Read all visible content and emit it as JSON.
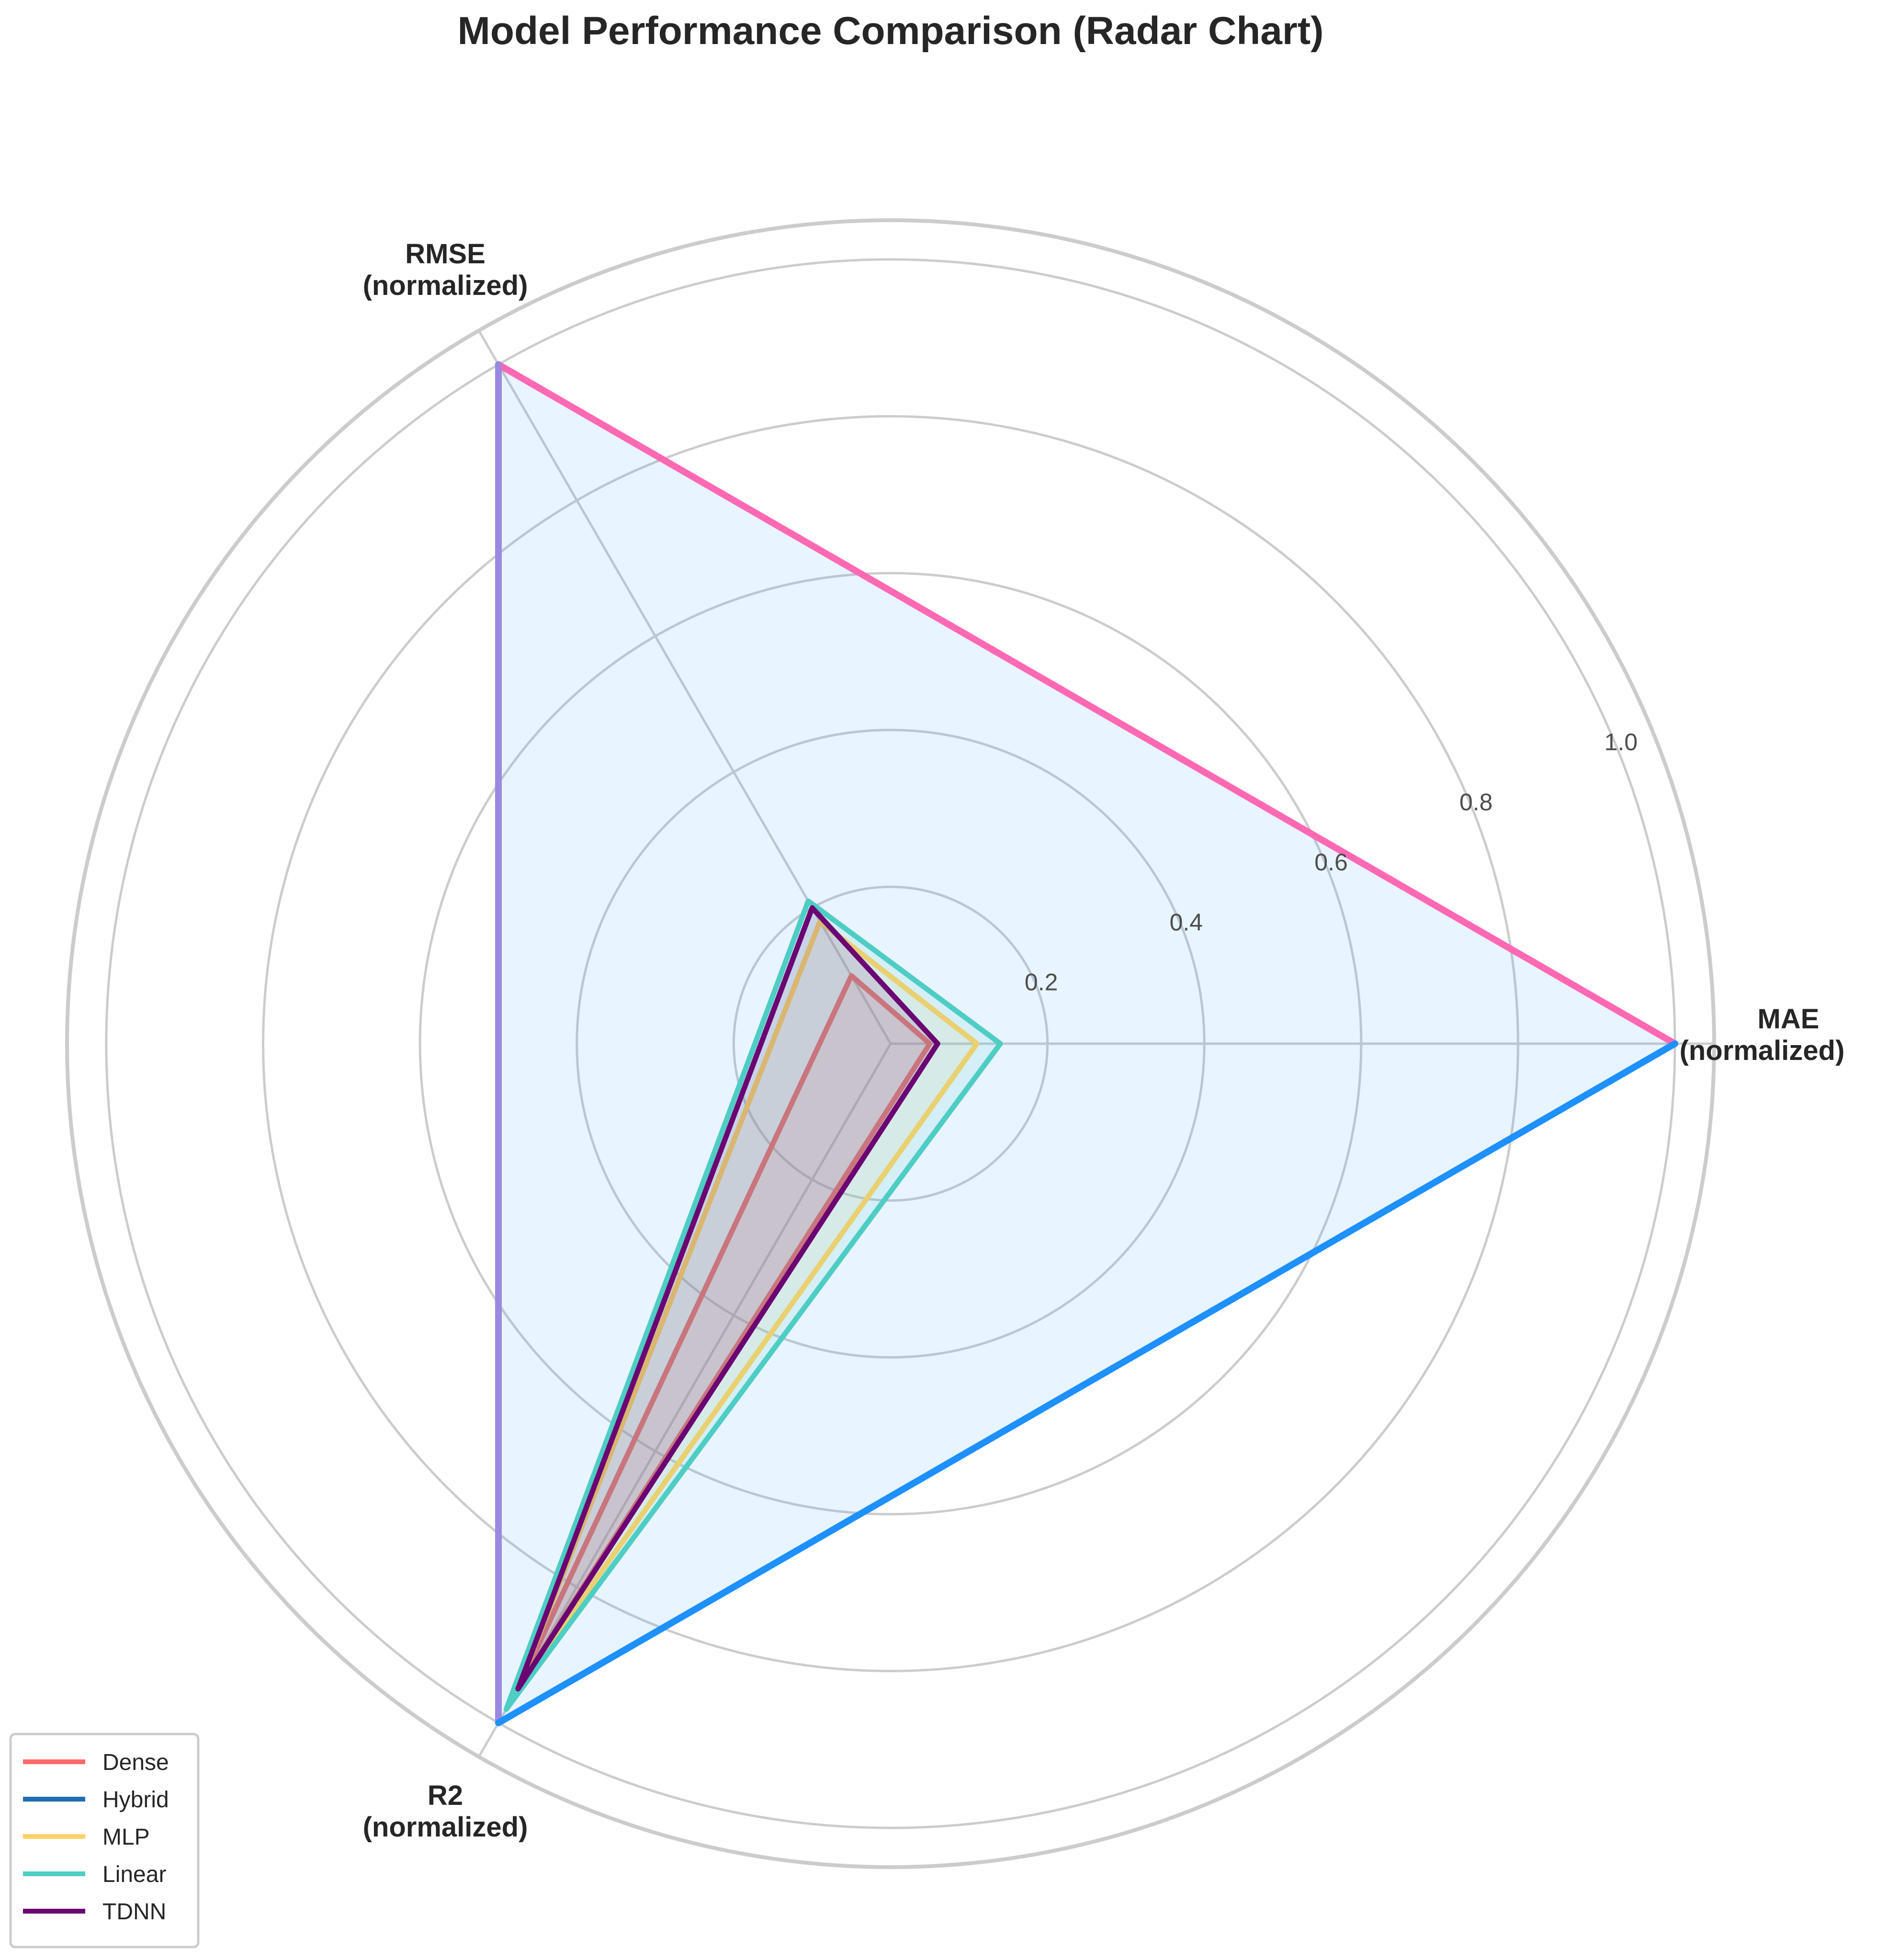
{
  "chart_data": {
    "type": "radar",
    "title": "Model Performance Comparison (Radar Chart)",
    "axes": [
      [
        "MAE",
        "(normalized)"
      ],
      [
        "RMSE",
        "(normalized)"
      ],
      [
        "R2",
        "(normalized)"
      ]
    ],
    "rticks": [
      "0.2",
      "0.4",
      "0.6",
      "0.8",
      "1.0"
    ],
    "rtick_values": [
      0.2,
      0.4,
      0.6,
      0.8,
      1.0
    ],
    "rlim": [
      0,
      1.05
    ],
    "grid": true,
    "legend_position": "lower-left",
    "series": [
      {
        "name": "Dense",
        "color": "#FF6B6B",
        "values": [
          0.05,
          0.1,
          0.95
        ]
      },
      {
        "name": "Hybrid",
        "color": "#1E90FF",
        "values": [
          1.0,
          1.0,
          1.0
        ]
      },
      {
        "name": "MLP",
        "color": "#FFD166",
        "values": [
          0.11,
          0.18,
          0.95
        ]
      },
      {
        "name": "Linear",
        "color": "#4ECDC4",
        "values": [
          0.14,
          0.21,
          0.98
        ]
      },
      {
        "name": "TDNN",
        "color": "#6A0572",
        "values": [
          0.06,
          0.2,
          0.95
        ]
      }
    ],
    "hybrid_edge_colors": [
      "#FF69B4",
      "#9B89E0",
      "#1E90FF"
    ],
    "legend_line_colors": [
      "#FF6B6B",
      "#1F6FB0",
      "#FFD166",
      "#4ECDC4",
      "#6A0572"
    ]
  }
}
